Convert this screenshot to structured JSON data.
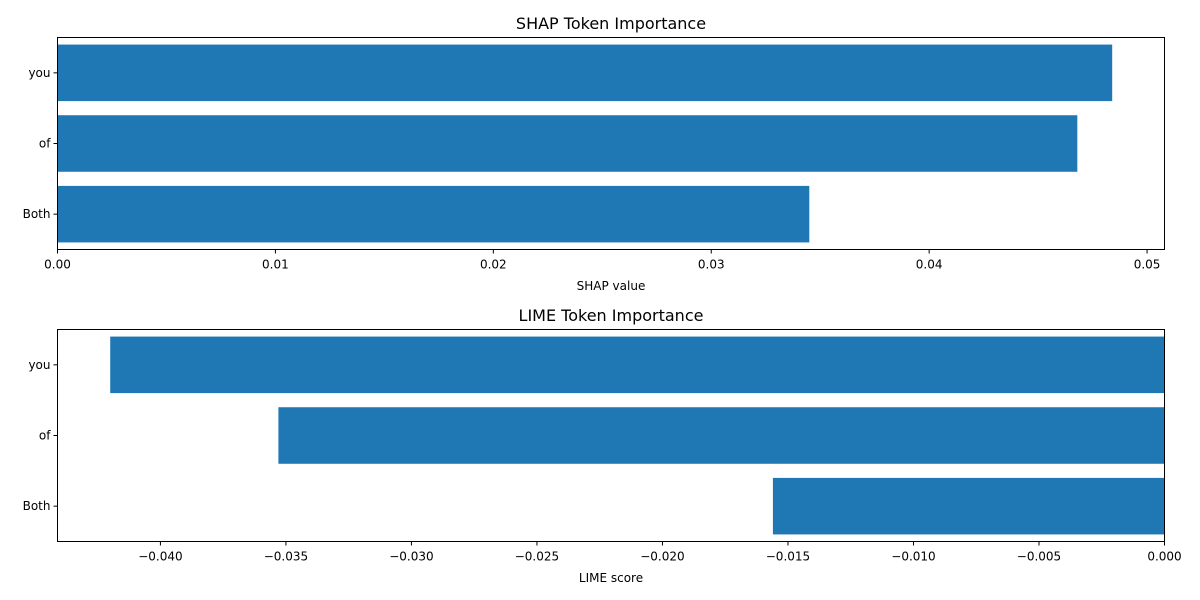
{
  "chart_data": [
    {
      "type": "bar",
      "orientation": "horizontal",
      "title": "SHAP Token Importance",
      "xlabel": "SHAP value",
      "ylabel": "",
      "categories": [
        "Both",
        "of",
        "you"
      ],
      "values": [
        0.0345,
        0.0468,
        0.0484
      ],
      "xlim": [
        0,
        0.0508
      ],
      "xticks": [
        "0.00",
        "0.01",
        "0.02",
        "0.03",
        "0.04",
        "0.05"
      ],
      "color": "#1f77b4",
      "grid": false
    },
    {
      "type": "bar",
      "orientation": "horizontal",
      "title": "LIME Token Importance",
      "xlabel": "LIME score",
      "ylabel": "",
      "categories": [
        "Both",
        "of",
        "you"
      ],
      "values": [
        -0.0156,
        -0.0353,
        -0.042
      ],
      "xlim": [
        -0.0441,
        0
      ],
      "xticks": [
        "−0.040",
        "−0.035",
        "−0.030",
        "−0.025",
        "−0.020",
        "−0.015",
        "−0.010",
        "−0.005",
        "0.000"
      ],
      "color": "#1f77b4",
      "grid": false
    }
  ]
}
